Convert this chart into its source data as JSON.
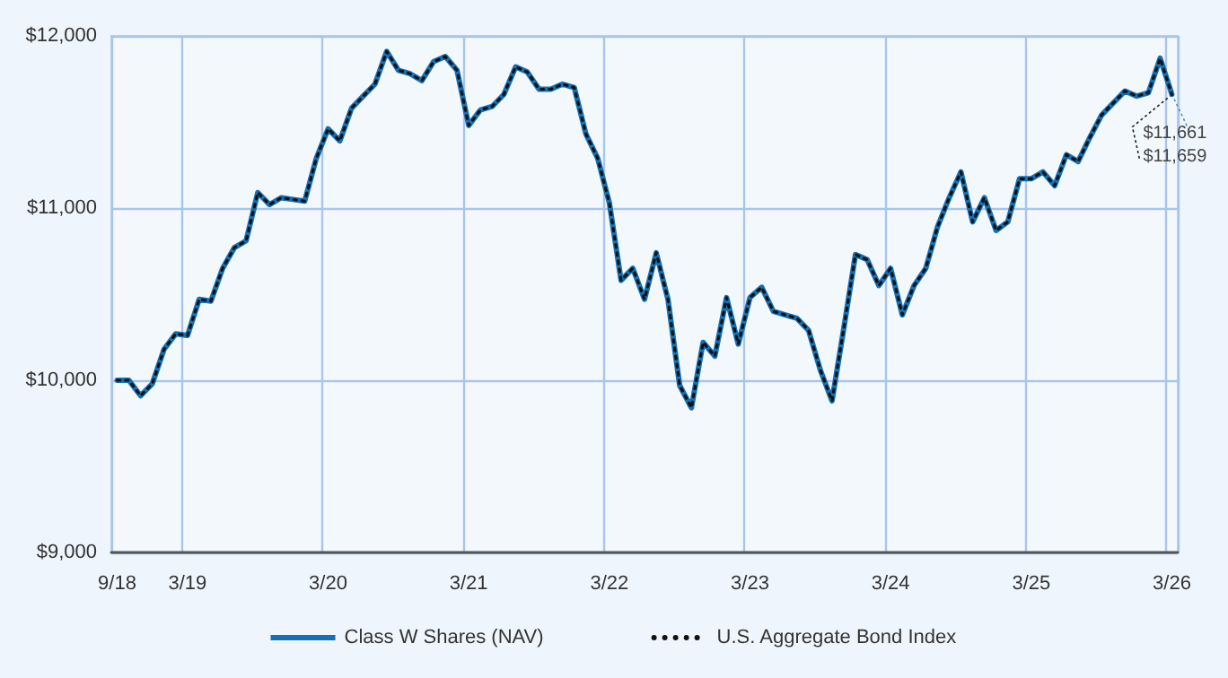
{
  "chart_data": {
    "type": "line",
    "categories": [
      "9/18",
      null,
      null,
      null,
      null,
      null,
      "3/19",
      null,
      null,
      null,
      null,
      null,
      null,
      null,
      null,
      null,
      null,
      null,
      "3/20",
      null,
      null,
      null,
      null,
      null,
      null,
      null,
      null,
      null,
      null,
      null,
      "3/21",
      null,
      null,
      null,
      null,
      null,
      null,
      null,
      null,
      null,
      null,
      null,
      "3/22",
      null,
      null,
      null,
      null,
      null,
      null,
      null,
      null,
      null,
      null,
      null,
      "3/23",
      null,
      null,
      null,
      null,
      null,
      null,
      null,
      null,
      null,
      null,
      null,
      "3/24",
      null,
      null,
      null,
      null,
      null,
      null,
      null,
      null,
      null,
      null,
      null,
      "3/25",
      null,
      null,
      null,
      null,
      null,
      null,
      null,
      null,
      null,
      null,
      null,
      "3/26"
    ],
    "series": [
      {
        "name": "Class W Shares (NAV)",
        "color": "#1470b5",
        "line_style": "solid",
        "values": [
          10000,
          10000,
          9910,
          9980,
          10180,
          10270,
          10260,
          10470,
          10460,
          10650,
          10770,
          10810,
          11090,
          11020,
          11060,
          11050,
          11040,
          11290,
          11460,
          11390,
          11580,
          11650,
          11720,
          11910,
          11800,
          11780,
          11740,
          11850,
          11880,
          11800,
          11480,
          11570,
          11590,
          11660,
          11820,
          11790,
          11690,
          11690,
          11720,
          11700,
          11430,
          11290,
          11030,
          10580,
          10650,
          10470,
          10740,
          10470,
          9970,
          9840,
          10220,
          10140,
          10480,
          10210,
          10480,
          10540,
          10400,
          10380,
          10360,
          10290,
          10060,
          9880,
          10300,
          10730,
          10700,
          10550,
          10650,
          10380,
          10550,
          10650,
          10890,
          11060,
          11210,
          10920,
          11060,
          10870,
          10920,
          11170,
          11170,
          11210,
          11130,
          11310,
          11270,
          11410,
          11540,
          11610,
          11680,
          11650,
          11670,
          11870,
          11661
        ]
      },
      {
        "name": "U.S. Aggregate Bond Index",
        "color": "#111111",
        "line_style": "dotted",
        "values": [
          10000,
          10000,
          9910,
          9980,
          10180,
          10270,
          10260,
          10470,
          10460,
          10650,
          10770,
          10810,
          11090,
          11020,
          11060,
          11050,
          11040,
          11290,
          11460,
          11390,
          11580,
          11650,
          11720,
          11910,
          11800,
          11780,
          11740,
          11850,
          11880,
          11800,
          11480,
          11570,
          11590,
          11660,
          11820,
          11790,
          11690,
          11690,
          11720,
          11700,
          11430,
          11290,
          11030,
          10580,
          10650,
          10470,
          10740,
          10470,
          9970,
          9840,
          10220,
          10140,
          10480,
          10210,
          10480,
          10540,
          10400,
          10380,
          10360,
          10290,
          10060,
          9880,
          10300,
          10730,
          10700,
          10550,
          10650,
          10380,
          10550,
          10650,
          10890,
          11060,
          11210,
          10920,
          11060,
          10870,
          10920,
          11170,
          11170,
          11210,
          11130,
          11310,
          11270,
          11410,
          11540,
          11610,
          11680,
          11650,
          11670,
          11870,
          11659
        ]
      }
    ],
    "ylim": [
      9000,
      12000
    ],
    "yticks": [
      {
        "value": 9000,
        "label": "$9,000"
      },
      {
        "value": 10000,
        "label": "$10,000"
      },
      {
        "value": 11000,
        "label": "$11,000"
      },
      {
        "value": 12000,
        "label": "$12,000"
      }
    ],
    "annotations": [
      {
        "text": "$11,661",
        "x": "3/26",
        "y": 11661
      },
      {
        "text": "$11,659",
        "x": "3/26",
        "y": 11659
      }
    ],
    "grid": true,
    "legend": "bottom",
    "marker": "none"
  }
}
